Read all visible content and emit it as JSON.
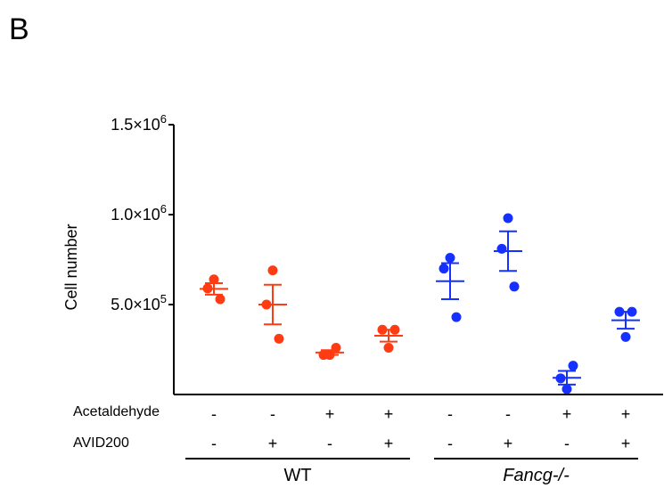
{
  "panel_label": "B",
  "chart_data": {
    "type": "scatter",
    "ylabel": "Cell number",
    "ylim": [
      0,
      1500000
    ],
    "y_ticks": [
      {
        "value": 500000,
        "mantissa": "5.0×10",
        "exp": "5"
      },
      {
        "value": 1000000,
        "mantissa": "1.0×10",
        "exp": "6"
      },
      {
        "value": 1500000,
        "mantissa": "1.5×10",
        "exp": "6"
      }
    ],
    "row_labels": [
      "Acetaldehyde",
      "AVID200"
    ],
    "conditions": [
      {
        "acetaldehyde": "-",
        "avid200": "-",
        "group": "WT",
        "color": "#ff3b14",
        "points": [
          640000,
          590000,
          530000
        ],
        "mean": 587000,
        "sem": 32000
      },
      {
        "acetaldehyde": "-",
        "avid200": "+",
        "group": "WT",
        "color": "#ff3b14",
        "points": [
          690000,
          500000,
          310000
        ],
        "mean": 500000,
        "sem": 110000
      },
      {
        "acetaldehyde": "+",
        "avid200": "-",
        "group": "WT",
        "color": "#ff3b14",
        "points": [
          260000,
          220000,
          220000
        ],
        "mean": 233000,
        "sem": 13000
      },
      {
        "acetaldehyde": "+",
        "avid200": "+",
        "group": "WT",
        "color": "#ff3b14",
        "points": [
          360000,
          360000,
          260000
        ],
        "mean": 327000,
        "sem": 33000
      },
      {
        "acetaldehyde": "-",
        "avid200": "-",
        "group": "Fancg-/-",
        "color": "#1530ff",
        "points": [
          760000,
          700000,
          430000
        ],
        "mean": 630000,
        "sem": 100000
      },
      {
        "acetaldehyde": "-",
        "avid200": "+",
        "group": "Fancg-/-",
        "color": "#1530ff",
        "points": [
          980000,
          810000,
          600000
        ],
        "mean": 797000,
        "sem": 110000
      },
      {
        "acetaldehyde": "+",
        "avid200": "-",
        "group": "Fancg-/-",
        "color": "#1530ff",
        "points": [
          160000,
          90000,
          30000
        ],
        "mean": 93000,
        "sem": 38000
      },
      {
        "acetaldehyde": "+",
        "avid200": "+",
        "group": "Fancg-/-",
        "color": "#1530ff",
        "points": [
          460000,
          460000,
          320000
        ],
        "mean": 413000,
        "sem": 47000
      }
    ],
    "groups": [
      {
        "name": "WT",
        "italic": false
      },
      {
        "name": "Fancg-/-",
        "italic": true
      }
    ]
  }
}
